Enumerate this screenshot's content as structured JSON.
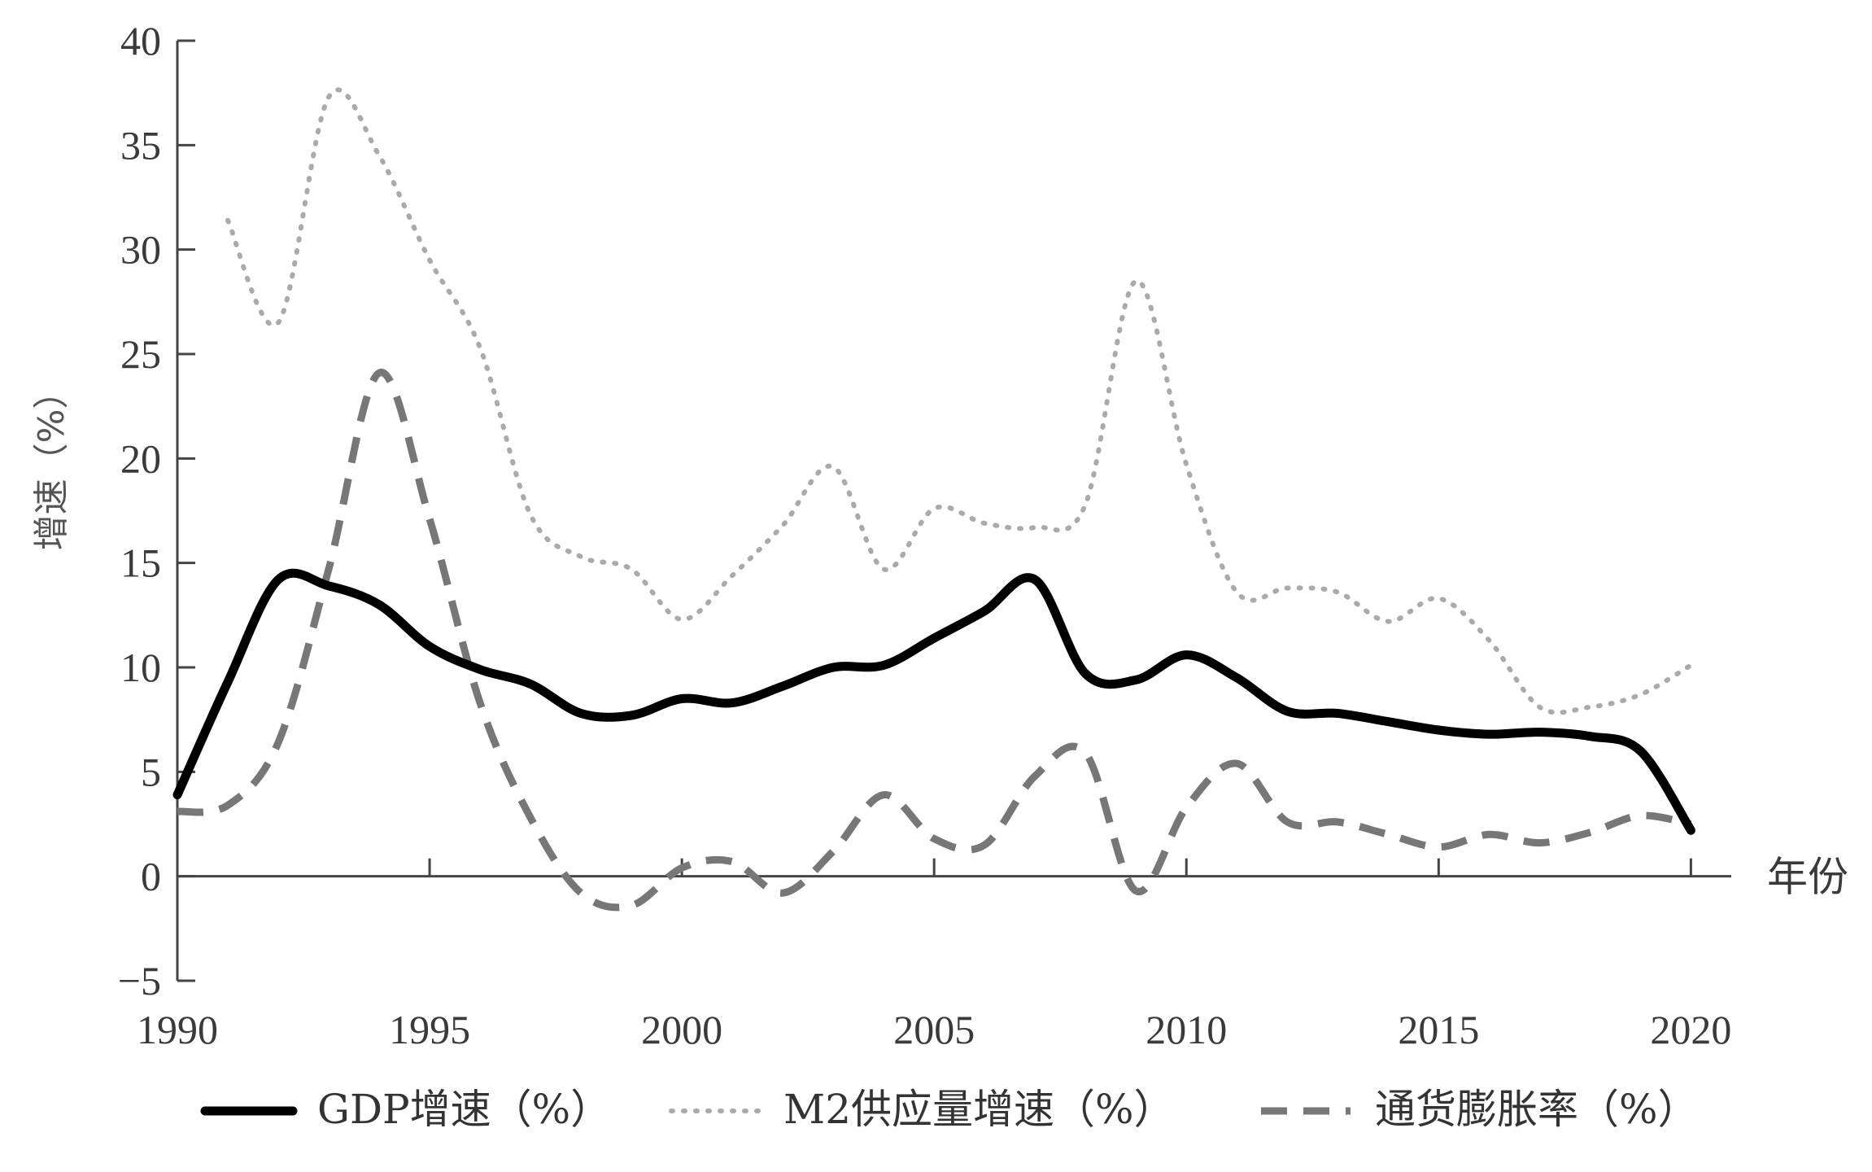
{
  "chart_data": {
    "type": "line",
    "title": "",
    "xlabel": "年份",
    "ylabel": "增速（%）",
    "xlim": [
      1990,
      2020.8
    ],
    "ylim": [
      -5,
      40
    ],
    "x_ticks": [
      "1990",
      "1995",
      "2000",
      "2005",
      "2010",
      "2015",
      "2020"
    ],
    "y_ticks": [
      "−5",
      "0",
      "5",
      "10",
      "15",
      "20",
      "25",
      "30",
      "35",
      "40"
    ],
    "grid": false,
    "legend_position": "bottom",
    "series": [
      {
        "name": "GDP增速（%）",
        "style": "solid",
        "color": "#000000",
        "x": [
          1990,
          1991,
          1992,
          1993,
          1994,
          1995,
          1996,
          1997,
          1998,
          1999,
          2000,
          2001,
          2002,
          2003,
          2004,
          2005,
          2006,
          2007,
          2008,
          2009,
          2010,
          2011,
          2012,
          2013,
          2014,
          2015,
          2016,
          2017,
          2018,
          2019,
          2020
        ],
        "y": [
          3.9,
          9.3,
          14.2,
          13.9,
          13.0,
          11.0,
          9.9,
          9.2,
          7.8,
          7.7,
          8.5,
          8.3,
          9.1,
          10.0,
          10.1,
          11.4,
          12.7,
          14.2,
          9.7,
          9.4,
          10.6,
          9.5,
          7.9,
          7.8,
          7.4,
          7.0,
          6.8,
          6.9,
          6.7,
          6.0,
          2.2
        ]
      },
      {
        "name": "M2供应量增速（%）",
        "style": "dotted",
        "color": "#aaaaaa",
        "x": [
          1991,
          1992,
          1993,
          1994,
          1995,
          1996,
          1997,
          1998,
          1999,
          2000,
          2001,
          2002,
          2003,
          2004,
          2005,
          2006,
          2007,
          2008,
          2009,
          2010,
          2011,
          2012,
          2013,
          2014,
          2015,
          2016,
          2017,
          2018,
          2019,
          2020
        ],
        "y": [
          31.4,
          26.5,
          37.3,
          34.5,
          29.5,
          25.3,
          17.3,
          15.3,
          14.7,
          12.3,
          14.4,
          16.8,
          19.6,
          14.7,
          17.6,
          16.9,
          16.7,
          17.8,
          28.5,
          19.7,
          13.6,
          13.8,
          13.6,
          12.2,
          13.3,
          11.3,
          8.1,
          8.1,
          8.7,
          10.1
        ]
      },
      {
        "name": "通货膨胀率（%）",
        "style": "dashed",
        "color": "#777777",
        "x": [
          1990,
          1991,
          1992,
          1993,
          1994,
          1995,
          1996,
          1997,
          1998,
          1999,
          2000,
          2001,
          2002,
          2003,
          2004,
          2005,
          2006,
          2007,
          2008,
          2009,
          2010,
          2011,
          2012,
          2013,
          2014,
          2015,
          2016,
          2017,
          2018,
          2019,
          2020
        ],
        "y": [
          3.1,
          3.4,
          6.4,
          14.7,
          24.1,
          17.1,
          8.3,
          2.8,
          -0.8,
          -1.4,
          0.4,
          0.7,
          -0.8,
          1.2,
          3.9,
          1.8,
          1.5,
          4.8,
          5.9,
          -0.7,
          3.3,
          5.4,
          2.6,
          2.6,
          2.0,
          1.4,
          2.0,
          1.6,
          2.1,
          2.9,
          2.5
        ]
      }
    ]
  }
}
